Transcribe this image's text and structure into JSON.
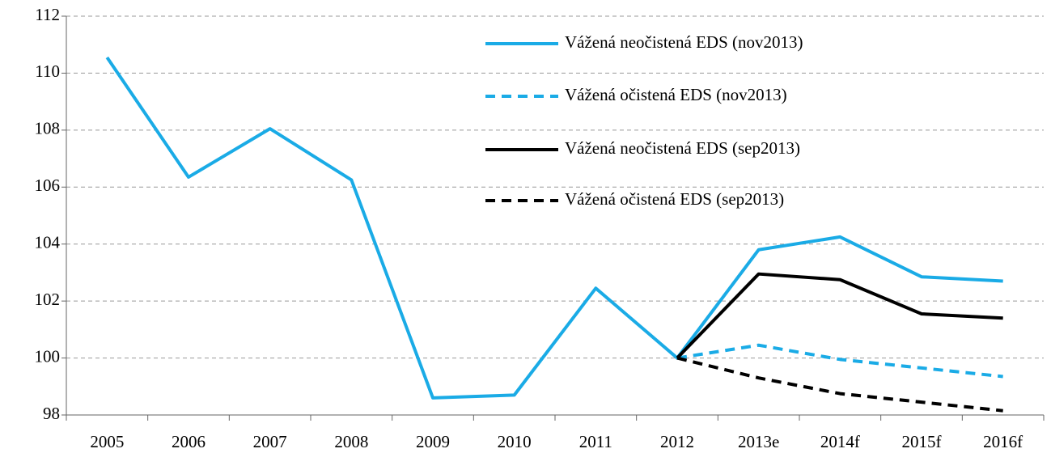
{
  "chart_data": {
    "type": "line",
    "categories": [
      "2005",
      "2006",
      "2007",
      "2008",
      "2009",
      "2010",
      "2011",
      "2012",
      "2013e",
      "2014f",
      "2015f",
      "2016f"
    ],
    "series": [
      {
        "name": "Vážená neočistená EDS (nov2013)",
        "color": "#1aabe6",
        "dashed": false,
        "values": [
          110.55,
          106.35,
          108.05,
          106.25,
          98.6,
          98.7,
          102.45,
          100,
          103.8,
          104.25,
          102.85,
          102.7
        ]
      },
      {
        "name": "Vážená očistená EDS (nov2013)",
        "color": "#1aabe6",
        "dashed": true,
        "values": [
          null,
          null,
          null,
          null,
          null,
          null,
          null,
          100,
          100.45,
          99.95,
          99.65,
          99.35
        ]
      },
      {
        "name": "Vážená neočistená EDS (sep2013)",
        "color": "#000000",
        "dashed": false,
        "values": [
          null,
          null,
          null,
          null,
          null,
          null,
          null,
          100,
          102.95,
          102.75,
          101.55,
          101.4
        ]
      },
      {
        "name": "Vážená očistená EDS (sep2013)",
        "color": "#000000",
        "dashed": true,
        "values": [
          null,
          null,
          null,
          null,
          null,
          null,
          null,
          100,
          99.3,
          98.75,
          98.45,
          98.15
        ]
      }
    ],
    "ylim": [
      98,
      112
    ],
    "yticks": [
      98,
      100,
      102,
      104,
      106,
      108,
      110,
      112
    ],
    "grid": true,
    "legend": "top-right"
  }
}
